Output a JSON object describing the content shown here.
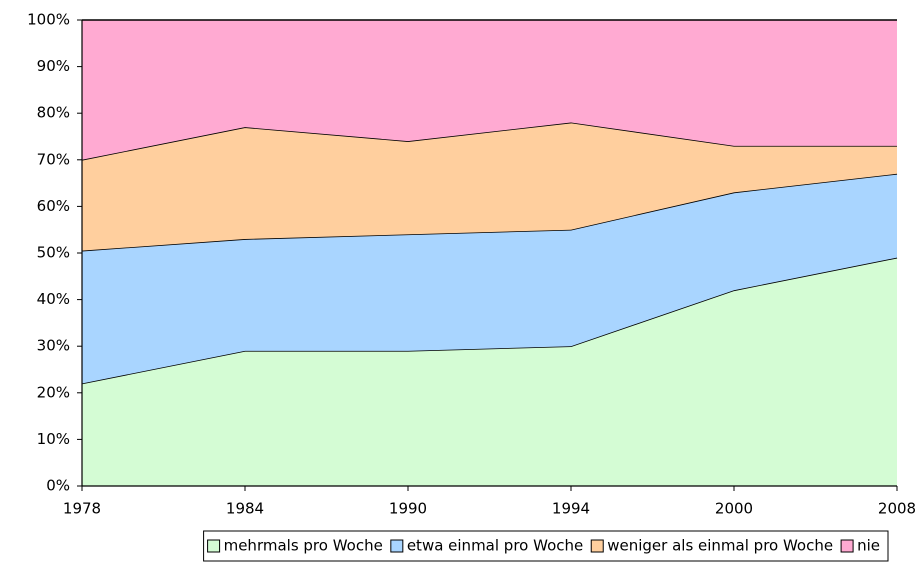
{
  "chart_data": {
    "type": "stacked_area",
    "categories": [
      "1978",
      "1984",
      "1990",
      "1994",
      "2000",
      "2008"
    ],
    "series": [
      {
        "name": "mehrmals pro Woche",
        "color": "#d4fcd4",
        "values": [
          22,
          29,
          29,
          30,
          42,
          49
        ]
      },
      {
        "name": "etwa einmal pro Woche",
        "color": "#a9d5ff",
        "values": [
          28.5,
          24,
          25,
          25,
          21,
          18
        ]
      },
      {
        "name": "weniger als einmal pro Woche",
        "color": "#ffcf9e",
        "values": [
          19.5,
          24,
          20,
          23,
          10,
          6
        ]
      },
      {
        "name": "nie",
        "color": "#ffaad2",
        "values": [
          30,
          23,
          26,
          22,
          27,
          27
        ]
      }
    ],
    "ylim": [
      0,
      100
    ],
    "yticks": [
      {
        "value": 0,
        "label": "0%"
      },
      {
        "value": 10,
        "label": "10%"
      },
      {
        "value": 20,
        "label": "20%"
      },
      {
        "value": 30,
        "label": "30%"
      },
      {
        "value": 40,
        "label": "40%"
      },
      {
        "value": 50,
        "label": "50%"
      },
      {
        "value": 60,
        "label": "60%"
      },
      {
        "value": 70,
        "label": "70%"
      },
      {
        "value": 80,
        "label": "80%"
      },
      {
        "value": 90,
        "label": "90%"
      },
      {
        "value": 100,
        "label": "100%"
      }
    ],
    "legend": "bottom"
  }
}
